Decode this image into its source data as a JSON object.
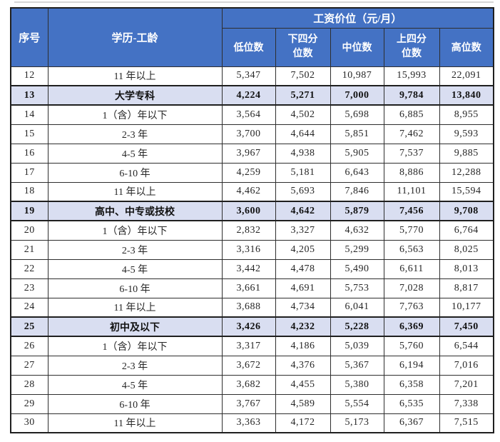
{
  "page": {
    "background": "#ffffff",
    "top_strip_color": "#d6d6d6"
  },
  "colors": {
    "header_bg": "#4472C4",
    "header_text": "#ffffff",
    "highlight_row_bg": "#d9def1",
    "grid_border": "#2e2e2e",
    "body_text": "#262626"
  },
  "table": {
    "header": {
      "col_serial": "序号",
      "col_edu": "学历-工龄",
      "group_title": "工资价位（元/月）",
      "sub_cols": [
        "低位数",
        "下四分\n位数",
        "中位数",
        "上四分\n位数",
        "高位数"
      ]
    },
    "rows": [
      {
        "no": "12",
        "label": "11 年以上",
        "values": [
          "5,347",
          "7,502",
          "10,987",
          "15,993",
          "22,091"
        ],
        "highlight": false
      },
      {
        "no": "13",
        "label": "大学专科",
        "values": [
          "4,224",
          "5,271",
          "7,000",
          "9,784",
          "13,840"
        ],
        "highlight": true
      },
      {
        "no": "14",
        "label": "1（含）年以下",
        "values": [
          "3,564",
          "4,502",
          "5,698",
          "6,885",
          "8,955"
        ],
        "highlight": false
      },
      {
        "no": "15",
        "label": "2-3 年",
        "values": [
          "3,700",
          "4,644",
          "5,851",
          "7,462",
          "9,593"
        ],
        "highlight": false
      },
      {
        "no": "16",
        "label": "4-5 年",
        "values": [
          "3,967",
          "4,938",
          "5,905",
          "7,537",
          "9,885"
        ],
        "highlight": false
      },
      {
        "no": "17",
        "label": "6-10 年",
        "values": [
          "4,259",
          "5,181",
          "6,643",
          "8,886",
          "12,288"
        ],
        "highlight": false
      },
      {
        "no": "18",
        "label": "11 年以上",
        "values": [
          "4,462",
          "5,693",
          "7,846",
          "11,101",
          "15,594"
        ],
        "highlight": false
      },
      {
        "no": "19",
        "label": "高中、中专或技校",
        "values": [
          "3,600",
          "4,642",
          "5,879",
          "7,456",
          "9,708"
        ],
        "highlight": true
      },
      {
        "no": "20",
        "label": "1（含）年以下",
        "values": [
          "2,832",
          "3,327",
          "4,632",
          "5,770",
          "6,764"
        ],
        "highlight": false
      },
      {
        "no": "21",
        "label": "2-3 年",
        "values": [
          "3,316",
          "4,205",
          "5,299",
          "6,563",
          "8,025"
        ],
        "highlight": false
      },
      {
        "no": "22",
        "label": "4-5 年",
        "values": [
          "3,442",
          "4,478",
          "5,490",
          "6,611",
          "8,013"
        ],
        "highlight": false
      },
      {
        "no": "23",
        "label": "6-10 年",
        "values": [
          "3,661",
          "4,691",
          "5,753",
          "7,028",
          "8,817"
        ],
        "highlight": false
      },
      {
        "no": "24",
        "label": "11 年以上",
        "values": [
          "3,688",
          "4,734",
          "6,041",
          "7,763",
          "10,177"
        ],
        "highlight": false
      },
      {
        "no": "25",
        "label": "初中及以下",
        "values": [
          "3,426",
          "4,232",
          "5,228",
          "6,369",
          "7,450"
        ],
        "highlight": true
      },
      {
        "no": "26",
        "label": "1（含）年以下",
        "values": [
          "3,317",
          "4,186",
          "5,039",
          "5,760",
          "6,544"
        ],
        "highlight": false
      },
      {
        "no": "27",
        "label": "2-3 年",
        "values": [
          "3,672",
          "4,376",
          "5,367",
          "6,194",
          "7,016"
        ],
        "highlight": false
      },
      {
        "no": "28",
        "label": "4-5 年",
        "values": [
          "3,682",
          "4,455",
          "5,380",
          "6,358",
          "7,201"
        ],
        "highlight": false
      },
      {
        "no": "29",
        "label": "6-10 年",
        "values": [
          "3,767",
          "4,589",
          "5,554",
          "6,535",
          "7,338"
        ],
        "highlight": false
      },
      {
        "no": "30",
        "label": "11 年以上",
        "values": [
          "3,363",
          "4,172",
          "5,173",
          "6,367",
          "7,515"
        ],
        "highlight": false
      }
    ]
  }
}
